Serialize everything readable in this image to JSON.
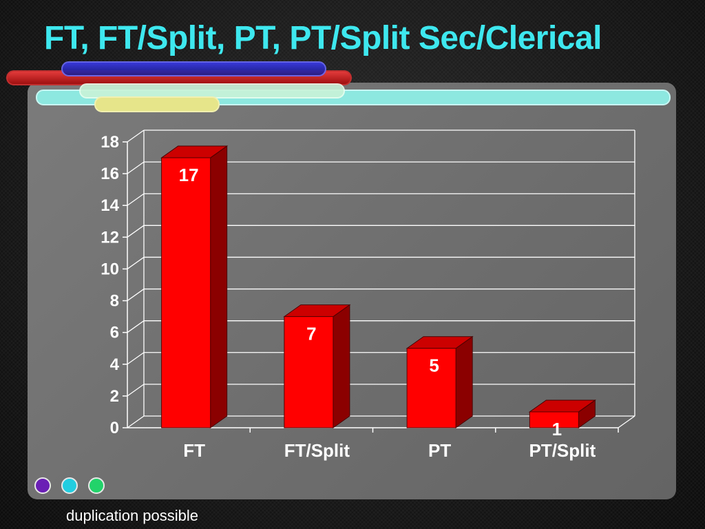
{
  "slide": {
    "title": "FT, FT/Split, PT, PT/Split Sec/Clerical",
    "footer": "duplication possible"
  },
  "colors": {
    "title": "#3ee8ef",
    "bar_front": "#ff0000",
    "bar_side": "#8b0000",
    "bar_top": "#cc0000",
    "decor_red": "#c91f1f",
    "decor_blue": "#2a2ad0",
    "decor_cyan": "#8de8e0",
    "decor_yellow": "#e6e58a",
    "dot_purple": "#6a1fb5",
    "dot_cyan": "#22cde0",
    "dot_green": "#22d36a"
  },
  "decorations": [
    "red-bar",
    "blue-bar",
    "cyan-bar",
    "light-cyan-bar",
    "yellow-bar"
  ],
  "nav_dots": [
    "purple-dot",
    "cyan-dot",
    "green-dot"
  ],
  "chart_data": {
    "type": "bar",
    "style": "3d",
    "categories": [
      "FT",
      "FT/Split",
      "PT",
      "PT/Split"
    ],
    "values": [
      17,
      7,
      5,
      1
    ],
    "data_labels": [
      "17",
      "7",
      "5",
      "1"
    ],
    "yticks": [
      "0",
      "2",
      "4",
      "6",
      "8",
      "10",
      "12",
      "14",
      "16",
      "18"
    ],
    "ylim": [
      0,
      18
    ],
    "grid": true,
    "legend": false,
    "title": "",
    "xlabel": "",
    "ylabel": ""
  }
}
